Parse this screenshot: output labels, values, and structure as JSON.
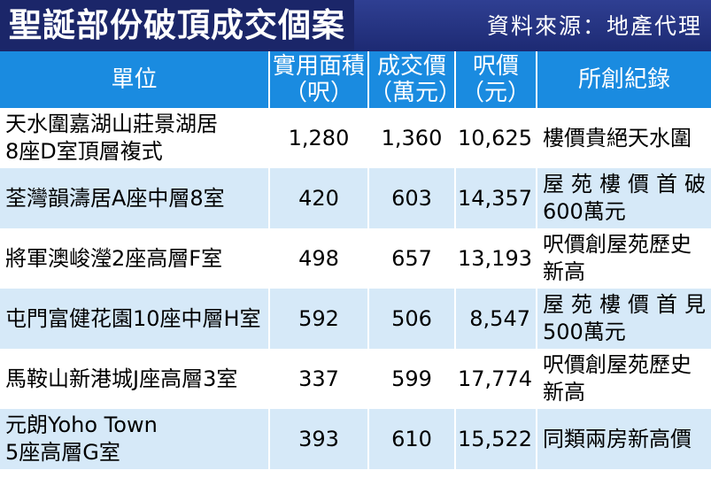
{
  "title": "聖誕部份破頂成交個案",
  "source": "資料來源：地產代理",
  "colors": {
    "title_bar": "#1d2a73",
    "header_bg": "#1a8be0",
    "row_alt": "#d6e9f8"
  },
  "table": {
    "headers": [
      {
        "line1": "單位",
        "line2": ""
      },
      {
        "line1": "實用面積",
        "line2": "（呎）"
      },
      {
        "line1": "成交價",
        "line2": "（萬元）"
      },
      {
        "line1": "呎價",
        "line2": "（元）"
      },
      {
        "line1": "所創紀錄",
        "line2": ""
      }
    ],
    "rows": [
      {
        "unit_line1": "天水圍嘉湖山莊景湖居",
        "unit_line2": "8座D室頂層複式",
        "area": "1,280",
        "price": "1,360",
        "psf": "10,625",
        "record_line1": "樓價貴絕天水圍",
        "record_line2": ""
      },
      {
        "unit_line1": "荃灣韻濤居A座中層8室",
        "unit_line2": "",
        "area": "420",
        "price": "603",
        "psf": "14,357",
        "record_line1": "屋苑樓價首破",
        "record_line2": "600萬元"
      },
      {
        "unit_line1": "將軍澳峻瀅2座高層F室",
        "unit_line2": "",
        "area": "498",
        "price": "657",
        "psf": "13,193",
        "record_line1": "呎價創屋苑歷史",
        "record_line2": "新高"
      },
      {
        "unit_line1": "屯門富健花園10座中層H室",
        "unit_line2": "",
        "area": "592",
        "price": "506",
        "psf": "8,547",
        "record_line1": "屋苑樓價首見",
        "record_line2": "500萬元"
      },
      {
        "unit_line1": "馬鞍山新港城J座高層3室",
        "unit_line2": "",
        "area": "337",
        "price": "599",
        "psf": "17,774",
        "record_line1": "呎價創屋苑歷史",
        "record_line2": "新高"
      },
      {
        "unit_line1": "元朗Yoho Town",
        "unit_line2": "5座高層G室",
        "area": "393",
        "price": "610",
        "psf": "15,522",
        "record_line1": "同類兩房新高價",
        "record_line2": ""
      }
    ]
  }
}
